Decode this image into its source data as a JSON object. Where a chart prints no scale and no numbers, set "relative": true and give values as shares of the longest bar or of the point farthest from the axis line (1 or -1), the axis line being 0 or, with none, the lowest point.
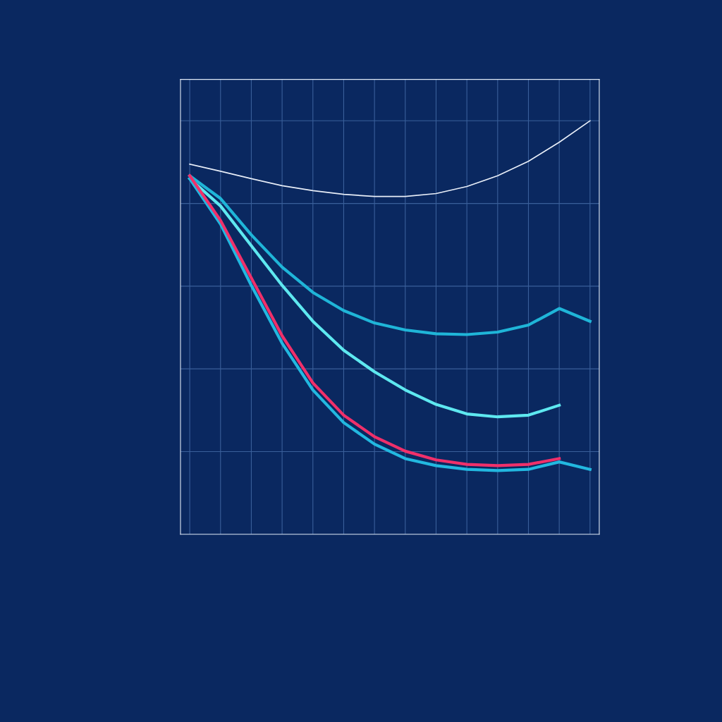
{
  "chart_data": {
    "type": "line",
    "relative": true,
    "grid": true,
    "tick_labels": false,
    "categories": [
      null,
      null,
      null,
      null,
      null,
      null,
      null,
      null,
      null,
      null,
      null,
      null,
      null,
      null
    ],
    "series": [
      {
        "color": "#e8eef8",
        "values": [
          0.895,
          0.878,
          0.86,
          0.843,
          0.831,
          0.822,
          0.817,
          0.817,
          0.824,
          0.841,
          0.867,
          0.902,
          0.948,
          1.0
        ]
      },
      {
        "color": "#1fb5d8",
        "values": [
          0.867,
          0.812,
          0.724,
          0.646,
          0.585,
          0.541,
          0.511,
          0.494,
          0.485,
          0.483,
          0.489,
          0.506,
          0.546,
          0.515
        ]
      },
      {
        "color": "#5ee8f0",
        "values": [
          0.86,
          0.794,
          0.698,
          0.602,
          0.515,
          0.445,
          0.393,
          0.349,
          0.314,
          0.291,
          0.284,
          0.288,
          0.312,
          null
        ]
      },
      {
        "color": "#22b8e0",
        "values": [
          0.86,
          0.75,
          0.602,
          0.462,
          0.349,
          0.27,
          0.218,
          0.183,
          0.166,
          0.157,
          0.154,
          0.157,
          0.175,
          0.157
        ]
      },
      {
        "color": "#f0306a",
        "values": [
          0.867,
          0.759,
          0.62,
          0.48,
          0.366,
          0.288,
          0.236,
          0.201,
          0.18,
          0.169,
          0.166,
          0.169,
          0.183,
          null
        ]
      }
    ]
  }
}
